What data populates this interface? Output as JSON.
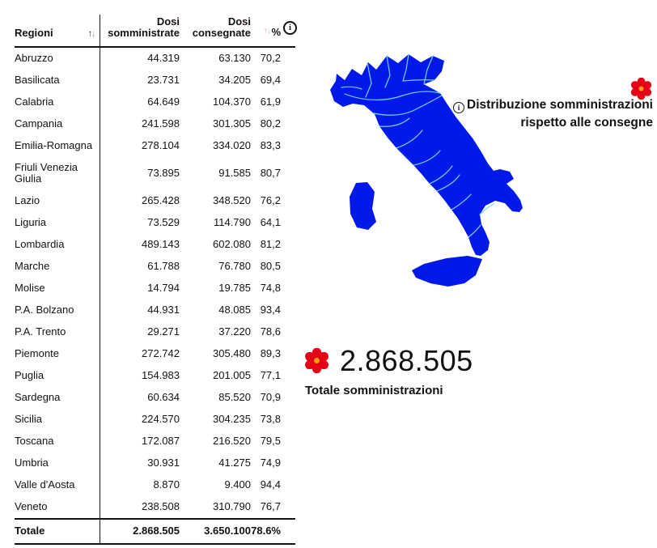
{
  "table": {
    "columns": [
      {
        "label": "Regioni"
      },
      {
        "line1": "Dosi",
        "line2": "somministrate"
      },
      {
        "line1": "Dosi",
        "line2": "consegnate"
      },
      {
        "label": "%"
      }
    ],
    "rows": [
      [
        "Abruzzo",
        "44.319",
        "63.130",
        "70,2"
      ],
      [
        "Basilicata",
        "23.731",
        "34.205",
        "69,4"
      ],
      [
        "Calabria",
        "64.649",
        "104.370",
        "61,9"
      ],
      [
        "Campania",
        "241.598",
        "301.305",
        "80,2"
      ],
      [
        "Emilia-Romagna",
        "278.104",
        "334.020",
        "83,3"
      ],
      [
        "Friuli Venezia Giulia",
        "73.895",
        "91.585",
        "80,7"
      ],
      [
        "Lazio",
        "265.428",
        "348.520",
        "76,2"
      ],
      [
        "Liguria",
        "73.529",
        "114.790",
        "64,1"
      ],
      [
        "Lombardia",
        "489.143",
        "602.080",
        "81,2"
      ],
      [
        "Marche",
        "61.788",
        "76.780",
        "80,5"
      ],
      [
        "Molise",
        "14.794",
        "19.785",
        "74,8"
      ],
      [
        "P.A. Bolzano",
        "44.931",
        "48.085",
        "93,4"
      ],
      [
        "P.A. Trento",
        "29.271",
        "37.220",
        "78,6"
      ],
      [
        "Piemonte",
        "272.742",
        "305.480",
        "89,3"
      ],
      [
        "Puglia",
        "154.983",
        "201.005",
        "77,1"
      ],
      [
        "Sardegna",
        "60.634",
        "85.520",
        "70,9"
      ],
      [
        "Sicilia",
        "224.570",
        "304.235",
        "73,8"
      ],
      [
        "Toscana",
        "172.087",
        "216.520",
        "79,5"
      ],
      [
        "Umbria",
        "30.931",
        "41.275",
        "74,9"
      ],
      [
        "Valle d'Aosta",
        "8.870",
        "9.400",
        "94,4"
      ],
      [
        "Veneto",
        "238.508",
        "310.790",
        "76,7"
      ]
    ],
    "total": [
      "Totale",
      "2.868.505",
      "3.650.100",
      "78.6%"
    ],
    "info_icon": "i"
  },
  "annotation": {
    "info_icon": "i",
    "line1": "Distribuzione somministrazioni",
    "line2": "rispetto alle consegne"
  },
  "summary": {
    "value": "2.868.505",
    "label": "Totale somministrazioni"
  },
  "colors": {
    "map_fill": "#0019e8",
    "map_border": "#72d7f5",
    "flower_red": "#e60017",
    "flower_center": "#f2a007",
    "text": "#121212"
  },
  "chart_data": {
    "type": "table",
    "title": "Distribuzione somministrazioni rispetto alle consegne",
    "columns": [
      "Regioni",
      "Dosi somministrate",
      "Dosi consegnate",
      "%"
    ],
    "rows": [
      [
        "Abruzzo",
        44319,
        63130,
        70.2
      ],
      [
        "Basilicata",
        23731,
        34205,
        69.4
      ],
      [
        "Calabria",
        64649,
        104370,
        61.9
      ],
      [
        "Campania",
        241598,
        301305,
        80.2
      ],
      [
        "Emilia-Romagna",
        278104,
        334020,
        83.3
      ],
      [
        "Friuli Venezia Giulia",
        73895,
        91585,
        80.7
      ],
      [
        "Lazio",
        265428,
        348520,
        76.2
      ],
      [
        "Liguria",
        73529,
        114790,
        64.1
      ],
      [
        "Lombardia",
        489143,
        602080,
        81.2
      ],
      [
        "Marche",
        61788,
        76780,
        80.5
      ],
      [
        "Molise",
        14794,
        19785,
        74.8
      ],
      [
        "P.A. Bolzano",
        44931,
        48085,
        93.4
      ],
      [
        "P.A. Trento",
        29271,
        37220,
        78.6
      ],
      [
        "Piemonte",
        272742,
        305480,
        89.3
      ],
      [
        "Puglia",
        154983,
        201005,
        77.1
      ],
      [
        "Sardegna",
        60634,
        85520,
        70.9
      ],
      [
        "Sicilia",
        224570,
        304235,
        73.8
      ],
      [
        "Toscana",
        172087,
        216520,
        79.5
      ],
      [
        "Umbria",
        30931,
        41275,
        74.9
      ],
      [
        "Valle d'Aosta",
        8870,
        9400,
        94.4
      ],
      [
        "Veneto",
        238508,
        310790,
        76.7
      ]
    ],
    "total": [
      "Totale",
      2868505,
      3650100,
      78.6
    ],
    "map": {
      "type": "choropleth",
      "region": "Italy",
      "fill": "#0019e8",
      "note": "all regions uniform blue"
    },
    "kpi": {
      "value": 2868505,
      "label": "Totale somministrazioni"
    }
  }
}
